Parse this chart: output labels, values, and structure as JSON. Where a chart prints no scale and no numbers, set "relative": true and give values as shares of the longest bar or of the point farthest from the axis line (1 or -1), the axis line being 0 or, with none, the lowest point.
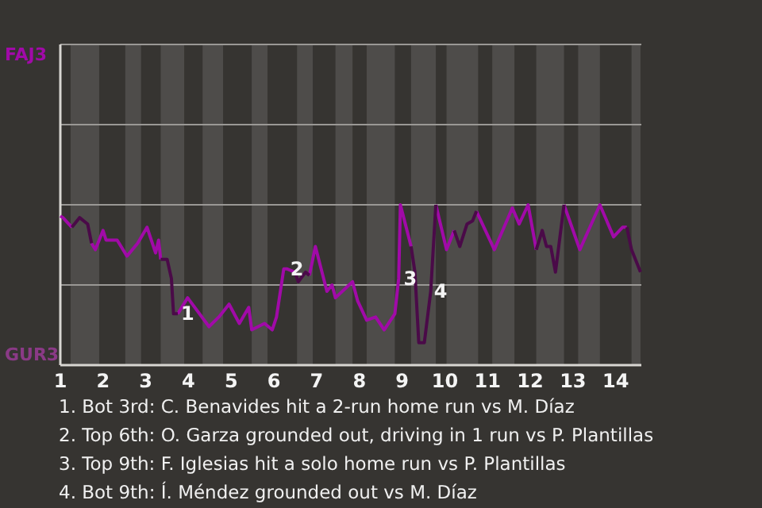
{
  "chart_data": {
    "type": "line",
    "relative": true,
    "x": [
      1,
      1.06,
      1.27,
      1.45,
      1.64,
      1.73,
      1.82,
      2,
      2.07,
      2.33,
      2.56,
      2.81,
      3.03,
      3.23,
      3.3,
      3.35,
      3.5,
      3.6,
      3.65,
      3.75,
      3.98,
      4.48,
      4.71,
      4.95,
      5.19,
      5.41,
      5.48,
      5.78,
      5.96,
      6.06,
      6.23,
      6.31,
      6.49,
      6.57,
      6.74,
      6.83,
      6.97,
      7.24,
      7.36,
      7.44,
      7.76,
      7.84,
      7.96,
      8.17,
      8.38,
      8.58,
      8.83,
      8.92,
      8.96,
      9.21,
      9.3,
      9.39,
      9.52,
      9.67,
      9.79,
      10.04,
      10.22,
      10.35,
      10.52,
      10.65,
      10.74,
      11.16,
      11.58,
      11.74,
      11.95,
      12.14,
      12.28,
      12.38,
      12.48,
      12.59,
      12.79,
      13.16,
      13.63,
      13.95,
      14.16,
      14.26,
      14.37,
      14.58
    ],
    "series": [
      {
        "color": "#a10aa8",
        "values": [
          0.93,
          0.92,
          0.86,
          null,
          null,
          0.76,
          0.72,
          0.84,
          0.78,
          0.78,
          0.68,
          0.76,
          0.86,
          0.7,
          0.78,
          0.66,
          null,
          null,
          null,
          0.32,
          0.42,
          0.24,
          0.3,
          0.38,
          0.26,
          0.36,
          0.22,
          0.26,
          0.22,
          0.3,
          0.6,
          0.6,
          0.58,
          null,
          null,
          0.56,
          0.74,
          0.46,
          0.5,
          0.42,
          0.5,
          0.52,
          0.4,
          0.28,
          0.3,
          0.22,
          0.32,
          0.54,
          1,
          0.74,
          null,
          null,
          null,
          null,
          1,
          0.72,
          0.84,
          null,
          null,
          null,
          0.96,
          0.72,
          0.98,
          0.88,
          1,
          0.72,
          null,
          null,
          null,
          null,
          1,
          0.72,
          1,
          0.8,
          0.86,
          0.86,
          null,
          null
        ]
      },
      {
        "color": "#4a0a48",
        "values": [
          null,
          null,
          0.86,
          0.92,
          0.88,
          0.76,
          null,
          null,
          null,
          null,
          null,
          null,
          null,
          null,
          null,
          0.66,
          0.66,
          0.54,
          0.32,
          0.32,
          null,
          null,
          null,
          null,
          null,
          null,
          null,
          null,
          null,
          null,
          null,
          null,
          0.58,
          0.52,
          0.58,
          0.56,
          null,
          null,
          null,
          null,
          null,
          null,
          null,
          null,
          null,
          null,
          null,
          null,
          null,
          0.74,
          0.58,
          0.14,
          0.14,
          0.46,
          1,
          null,
          0.84,
          0.74,
          0.88,
          0.9,
          0.96,
          null,
          null,
          null,
          null,
          0.72,
          0.84,
          0.74,
          0.74,
          0.58,
          1,
          null,
          null,
          null,
          null,
          0.86,
          0.72,
          0.58
        ]
      }
    ],
    "xlim": [
      1,
      14.6
    ],
    "xticks": [
      1,
      2,
      3,
      4,
      5,
      6,
      7,
      8,
      9,
      10,
      11,
      12,
      13,
      14
    ],
    "ref_lines": [
      {
        "axis": "y",
        "value": 0.5,
        "color": "#9a9895"
      },
      {
        "axis": "y",
        "value": 1,
        "color": "#9a9895"
      },
      {
        "axis": "y",
        "value": 1.5,
        "color": "#9a9895"
      }
    ],
    "bands": [
      {
        "axis": "x",
        "from": 1.24,
        "to": 1.91,
        "color": "#4e4c4a"
      },
      {
        "axis": "x",
        "from": 2.52,
        "to": 2.89,
        "color": "#4e4c4a"
      },
      {
        "axis": "x",
        "from": 3.35,
        "to": 3.9,
        "color": "#4e4c4a"
      },
      {
        "axis": "x",
        "from": 4.33,
        "to": 4.81,
        "color": "#4e4c4a"
      },
      {
        "axis": "x",
        "from": 5.48,
        "to": 5.85,
        "color": "#4e4c4a"
      },
      {
        "axis": "x",
        "from": 6.54,
        "to": 6.91,
        "color": "#4e4c4a"
      },
      {
        "axis": "x",
        "from": 7.44,
        "to": 7.84,
        "color": "#4e4c4a"
      },
      {
        "axis": "x",
        "from": 8.17,
        "to": 8.83,
        "color": "#4e4c4a"
      },
      {
        "axis": "x",
        "from": 9.21,
        "to": 9.79,
        "color": "#4e4c4a"
      },
      {
        "axis": "x",
        "from": 10.04,
        "to": 10.78,
        "color": "#4e4c4a"
      },
      {
        "axis": "x",
        "from": 11.11,
        "to": 11.63,
        "color": "#4e4c4a"
      },
      {
        "axis": "x",
        "from": 12.14,
        "to": 12.79,
        "color": "#4e4c4a"
      },
      {
        "axis": "x",
        "from": 13.12,
        "to": 13.63,
        "color": "#4e4c4a"
      },
      {
        "axis": "x",
        "from": 14.37,
        "to": 14.58,
        "color": "#4e4c4a"
      }
    ],
    "annotations": [
      "FAJ3",
      "GUR3",
      {
        "text": "1",
        "x": 3.75,
        "y": 0.32
      },
      {
        "text": "2",
        "x": 6.31,
        "y": 0.6
      },
      {
        "text": "3",
        "x": 8.96,
        "y": 0.54
      },
      {
        "text": "4",
        "x": 9.67,
        "y": 0.46
      },
      "1. Bot 3rd: C. Benavides hit a 2-run home run vs M. Díaz",
      "2. Top 6th: O. Garza grounded out, driving in 1 run vs P. Plantillas",
      "3. Top 9th: F. Iglesias hit a solo home run vs P. Plantillas",
      "4. Bot 9th: Í. Méndez grounded out vs M. Díaz"
    ]
  }
}
